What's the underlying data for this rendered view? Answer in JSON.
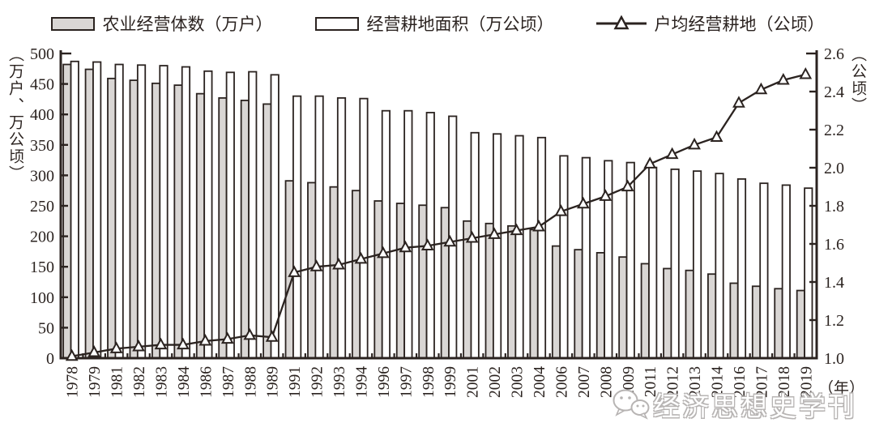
{
  "legend": {
    "items": [
      {
        "label": "农业经营体数（万户）",
        "swatch": "gray-bar"
      },
      {
        "label": "经营耕地面积（万公顷）",
        "swatch": "white-bar"
      },
      {
        "label": "户均经营耕地（公顷）",
        "swatch": "line-triangle"
      }
    ]
  },
  "axes": {
    "left_title": "（万户、万公顷）",
    "right_title": "（公顷）",
    "x_unit": "（年）",
    "left_ticks": [
      "0",
      "50",
      "100",
      "150",
      "200",
      "250",
      "300",
      "350",
      "400",
      "450",
      "500"
    ],
    "right_ticks": [
      "1.0",
      "1.2",
      "1.4",
      "1.6",
      "1.8",
      "2.0",
      "2.2",
      "2.4",
      "2.6"
    ]
  },
  "watermark": {
    "text": "经济思想史学刊"
  },
  "colors": {
    "ink": "#2b2320",
    "gray_fill": "#d9d6d4",
    "white_fill": "#ffffff",
    "watermark": "#b7b4b3"
  },
  "chart_data": {
    "type": "bar",
    "subtype": "grouped-bars-with-line",
    "categories": [
      "1978",
      "1979",
      "1981",
      "1982",
      "1983",
      "1984",
      "1986",
      "1987",
      "1988",
      "1989",
      "1991",
      "1992",
      "1993",
      "1994",
      "1996",
      "1997",
      "1998",
      "1999",
      "2001",
      "2002",
      "2003",
      "2004",
      "2006",
      "2007",
      "2008",
      "2009",
      "2011",
      "2012",
      "2013",
      "2014",
      "2016",
      "2017",
      "2018",
      "2019"
    ],
    "series": [
      {
        "name": "农业经营体数（万户）",
        "type": "bar",
        "style": "gray",
        "axis": "left",
        "values": [
          482,
          474,
          459,
          456,
          451,
          448,
          434,
          427,
          423,
          417,
          291,
          288,
          281,
          275,
          258,
          254,
          251,
          247,
          225,
          221,
          217,
          211,
          184,
          178,
          173,
          166,
          155,
          147,
          144,
          138,
          123,
          118,
          114,
          111
        ]
      },
      {
        "name": "经营耕地面积（万公顷）",
        "type": "bar",
        "style": "white",
        "axis": "left",
        "values": [
          487,
          486,
          482,
          481,
          480,
          478,
          471,
          469,
          470,
          465,
          430,
          430,
          427,
          426,
          406,
          406,
          403,
          397,
          370,
          368,
          365,
          362,
          332,
          329,
          324,
          321,
          313,
          310,
          307,
          303,
          294,
          287,
          284,
          279
        ]
      },
      {
        "name": "户均经营耕地（公顷）",
        "type": "line",
        "marker": "triangle",
        "axis": "right",
        "values": [
          1.01,
          1.03,
          1.05,
          1.06,
          1.07,
          1.07,
          1.09,
          1.1,
          1.12,
          1.11,
          1.45,
          1.48,
          1.49,
          1.52,
          1.55,
          1.58,
          1.59,
          1.61,
          1.63,
          1.65,
          1.67,
          1.69,
          1.77,
          1.81,
          1.85,
          1.9,
          2.02,
          2.07,
          2.12,
          2.16,
          2.34,
          2.41,
          2.46,
          2.49
        ]
      }
    ],
    "left_axis": {
      "min": 0,
      "max": 500,
      "step": 50,
      "label": "（万户、万公顷）"
    },
    "right_axis": {
      "min": 1.0,
      "max": 2.6,
      "step": 0.2,
      "label": "（公顷）"
    },
    "x_label": "（年）",
    "grid": false,
    "legend_position": "top"
  }
}
